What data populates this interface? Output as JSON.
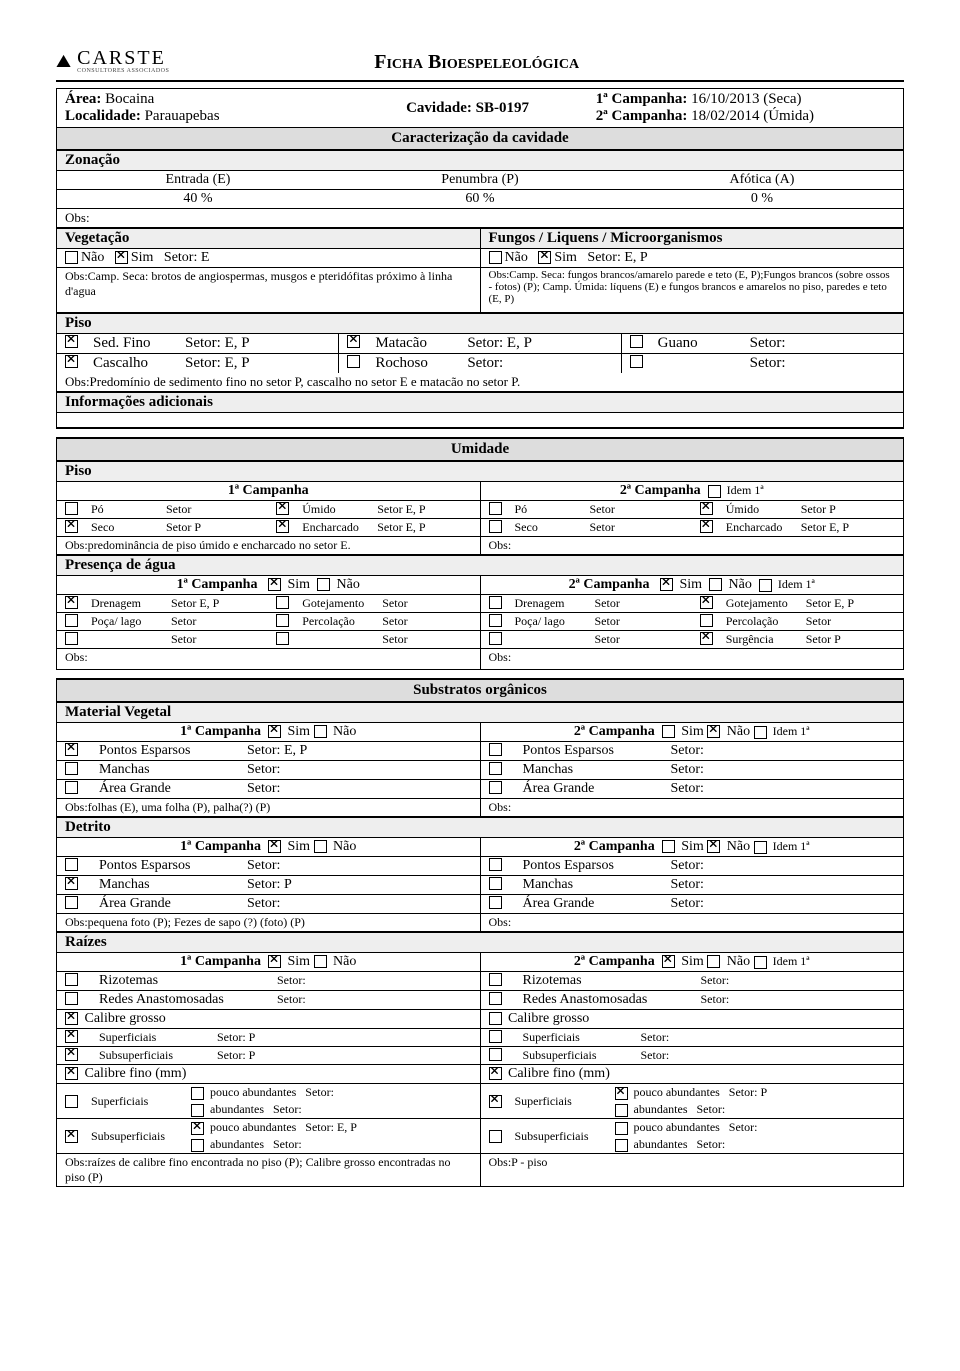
{
  "logo": {
    "name": "CARSTE",
    "sub": "CONSULTORES ASSOCIADOS"
  },
  "title": "Ficha Bioespeleológica",
  "meta": {
    "area_label": "Área:",
    "area": "Bocaina",
    "loc_label": "Localidade:",
    "loc": "Parauapebas",
    "cav_label": "Cavidade:",
    "cav": "SB-0197",
    "c1_label": "1ª Campanha:",
    "c1": "16/10/2013 (Seca)",
    "c2_label": "2ª Campanha:",
    "c2": "18/02/2014 (Úmida)"
  },
  "sec": {
    "caracterizacao": "Caracterização da cavidade",
    "zonacao": "Zonação",
    "veg": "Vegetação",
    "flm": "Fungos / Liquens / Microorganismos",
    "piso": "Piso",
    "info": "Informações adicionais",
    "umidade": "Umidade",
    "piso2": "Piso",
    "presenca": "Presença de água",
    "subs": "Substratos orgânicos",
    "matveg": "Material Vegetal",
    "detrito": "Detrito",
    "raizes": "Raízes"
  },
  "zon": {
    "e_label": "Entrada (E)",
    "e_pct": "40 %",
    "p_label": "Penumbra (P)",
    "p_pct": "60 %",
    "a_label": "Afótica (A)",
    "a_pct": "0 %"
  },
  "obs_label": "Obs:",
  "veg": {
    "nao": "Não",
    "sim": "Sim",
    "setor_label": "Setor:",
    "setor": "E",
    "obs": "Obs:Camp. Seca: brotos de angiospermas, musgos e pteridófitas próximo à linha d'agua"
  },
  "flm": {
    "nao": "Não",
    "sim": "Sim",
    "setor_label": "Setor:",
    "setor": "E, P",
    "obs": "Obs:Camp. Seca: fungos brancos/amarelo parede e teto (E, P);Fungos brancos (sobre ossos - fotos) (P); Camp. Úmida: líquens (E) e fungos brancos e amarelos no piso, paredes e teto (E, P)"
  },
  "piso": {
    "items": [
      {
        "l": "Sed. Fino",
        "ls": "Setor: E, P",
        "c": true
      },
      {
        "l": "Matacão",
        "ls": "Setor: E, P",
        "c": true
      },
      {
        "l": "Guano",
        "ls": "Setor:",
        "c": false
      },
      {
        "l": "Cascalho",
        "ls": "Setor: E, P",
        "c": true
      },
      {
        "l": "Rochoso",
        "ls": "Setor:",
        "c": false
      },
      {
        "l": "",
        "ls": "Setor:",
        "c": false
      }
    ],
    "obs": "Obs:Predomínio de sedimento fino no setor P, cascalho no setor E e matacão no setor P."
  },
  "labels": {
    "c1": "1ª Campanha",
    "c2": "2ª Campanha",
    "idem": "Idem 1ª",
    "sim": "Sim",
    "nao": "Não",
    "setor": "Setor",
    "setorc": "Setor:"
  },
  "umid_piso": {
    "c1": [
      {
        "l": "Pó",
        "s": "Setor",
        "c": false
      },
      {
        "l": "Úmido",
        "s": "Setor E, P",
        "c": true
      },
      {
        "l": "Seco",
        "s": "Setor P",
        "c": true
      },
      {
        "l": "Encharcado",
        "s": "Setor E, P",
        "c": true
      }
    ],
    "c2": [
      {
        "l": "Pó",
        "s": "Setor",
        "c": false
      },
      {
        "l": "Úmido",
        "s": "Setor P",
        "c": true
      },
      {
        "l": "Seco",
        "s": "Setor",
        "c": false
      },
      {
        "l": "Encharcado",
        "s": "Setor E, P",
        "c": true
      }
    ],
    "obs1": "Obs:predominância de piso úmido  e encharcado no setor E.",
    "obs2": "Obs:"
  },
  "presenca": {
    "c1_sim": true,
    "c2_sim": true,
    "c1": [
      {
        "l": "Drenagem",
        "s": "Setor E, P",
        "c": true
      },
      {
        "l": "Gotejamento",
        "s": "Setor",
        "c": false
      },
      {
        "l": "Poça/ lago",
        "s": "Setor",
        "c": false
      },
      {
        "l": "Percolação",
        "s": "Setor",
        "c": false
      },
      {
        "l": "",
        "s": "Setor",
        "c": false
      },
      {
        "l": "",
        "s": "Setor",
        "c": false
      }
    ],
    "c2": [
      {
        "l": "Drenagem",
        "s": "Setor",
        "c": false
      },
      {
        "l": "Gotejamento",
        "s": "Setor E, P",
        "c": true
      },
      {
        "l": "Poça/ lago",
        "s": "Setor",
        "c": false
      },
      {
        "l": "Percolação",
        "s": "Setor",
        "c": false
      },
      {
        "l": "",
        "s": "Setor",
        "c": false
      },
      {
        "l": "Surgência",
        "s": "Setor P",
        "c": true
      }
    ],
    "obs1": "Obs:",
    "obs2": "Obs:"
  },
  "matveg": {
    "c1_sim": true,
    "c2_sim": false,
    "c1": [
      {
        "l": "Pontos Esparsos",
        "s": "Setor: E, P",
        "c": true
      },
      {
        "l": "Manchas",
        "s": "Setor:",
        "c": false
      },
      {
        "l": "Área Grande",
        "s": "Setor:",
        "c": false
      }
    ],
    "c2": [
      {
        "l": "Pontos Esparsos",
        "s": "Setor:",
        "c": false
      },
      {
        "l": "Manchas",
        "s": "Setor:",
        "c": false
      },
      {
        "l": "Área Grande",
        "s": "Setor:",
        "c": false
      }
    ],
    "obs1": "Obs:folhas (E), uma folha (P), palha(?) (P)",
    "obs2": "Obs:"
  },
  "detrito": {
    "c1_sim": true,
    "c2_sim": false,
    "c1": [
      {
        "l": "Pontos Esparsos",
        "s": "Setor:",
        "c": false
      },
      {
        "l": "Manchas",
        "s": "Setor: P",
        "c": true
      },
      {
        "l": "Área Grande",
        "s": "Setor:",
        "c": false
      }
    ],
    "c2": [
      {
        "l": "Pontos Esparsos",
        "s": "Setor:",
        "c": false
      },
      {
        "l": "Manchas",
        "s": "Setor:",
        "c": false
      },
      {
        "l": "Área Grande",
        "s": "Setor:",
        "c": false
      }
    ],
    "obs1": "Obs:pequena foto (P); Fezes de sapo (?) (foto) (P)",
    "obs2": "Obs:"
  },
  "raizes": {
    "c1_sim": true,
    "c2_sim": true,
    "rows": [
      {
        "l": "Rizotemas",
        "s": "Setor:",
        "c1": false,
        "c2": false
      },
      {
        "l": "Redes Anastomosadas",
        "s": "Setor:",
        "c1": false,
        "c2": false
      }
    ],
    "cg": {
      "l": "Calibre grosso",
      "c1": true,
      "c2": false
    },
    "cg_sup": {
      "l": "Superficiais",
      "s1": "Setor: P",
      "s2": "Setor:",
      "c1": true,
      "c2": false
    },
    "cg_sub": {
      "l": "Subsuperficiais",
      "s1": "Setor: P",
      "s2": "Setor:",
      "c1": true,
      "c2": false
    },
    "cf": {
      "l": "Calibre fino (mm)",
      "c1": true,
      "c2": true
    },
    "cf_sup": {
      "l": "Superficiais",
      "c1": false,
      "c2": true,
      "pa": {
        "l": "pouco abundantes",
        "s1": "Setor:",
        "s2": "Setor: P",
        "c1": false,
        "c2": true
      },
      "ab": {
        "l": "abundantes",
        "s1": "Setor:",
        "s2": "Setor:",
        "c1": false,
        "c2": false
      }
    },
    "cf_sub": {
      "l": "Subsuperficiais",
      "c1": true,
      "c2": false,
      "pa": {
        "l": "pouco abundantes",
        "s1": "Setor: E, P",
        "s2": "Setor:",
        "c1": true,
        "c2": false
      },
      "ab": {
        "l": "abundantes",
        "s1": "Setor:",
        "s2": "Setor:",
        "c1": false,
        "c2": false
      }
    },
    "obs1": "Obs:raízes de calibre fino encontrada no piso (P); Calibre grosso encontradas no piso (P)",
    "obs2": "Obs:P - piso"
  }
}
